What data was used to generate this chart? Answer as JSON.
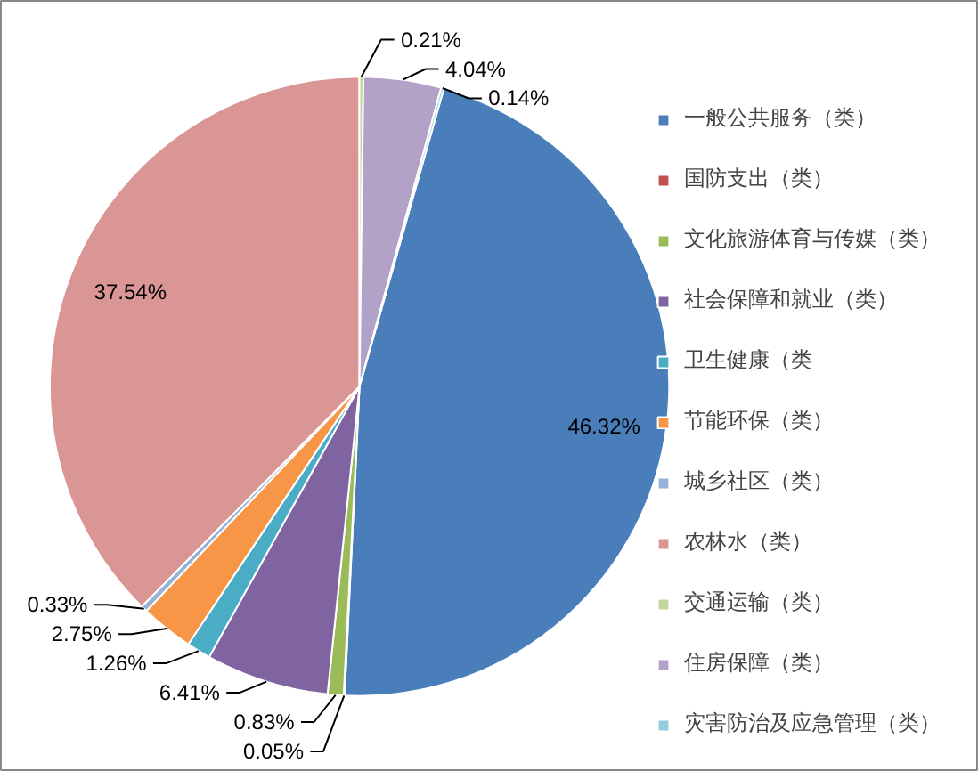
{
  "chart_data": {
    "type": "pie",
    "categories": [
      "一般公共服务（类）",
      "国防支出（类）",
      "文化旅游体育与传媒（类）",
      "社会保障和就业（类）",
      "卫生健康（类",
      "节能环保（类）",
      "城乡社区（类）",
      "农林水（类）",
      "交通运输（类）",
      "住房保障（类）",
      "灾害防治及应急管理（类）"
    ],
    "values": [
      46.32,
      0.05,
      0.83,
      6.41,
      1.26,
      2.75,
      0.33,
      37.54,
      0.21,
      4.04,
      0.14
    ],
    "colors": [
      "#4a7ebb",
      "#c0504d",
      "#9bbb59",
      "#8064a2",
      "#4bacc6",
      "#f79646",
      "#95b3d7",
      "#d99694",
      "#c3d69b",
      "#b3a2c7",
      "#93cddd"
    ],
    "value_labels": [
      "46.32%",
      "0.05%",
      "0.83%",
      "6.41%",
      "1.26%",
      "2.75%",
      "0.33%",
      "37.54%",
      "0.21%",
      "4.04%",
      "0.14%"
    ],
    "legend": "right"
  }
}
